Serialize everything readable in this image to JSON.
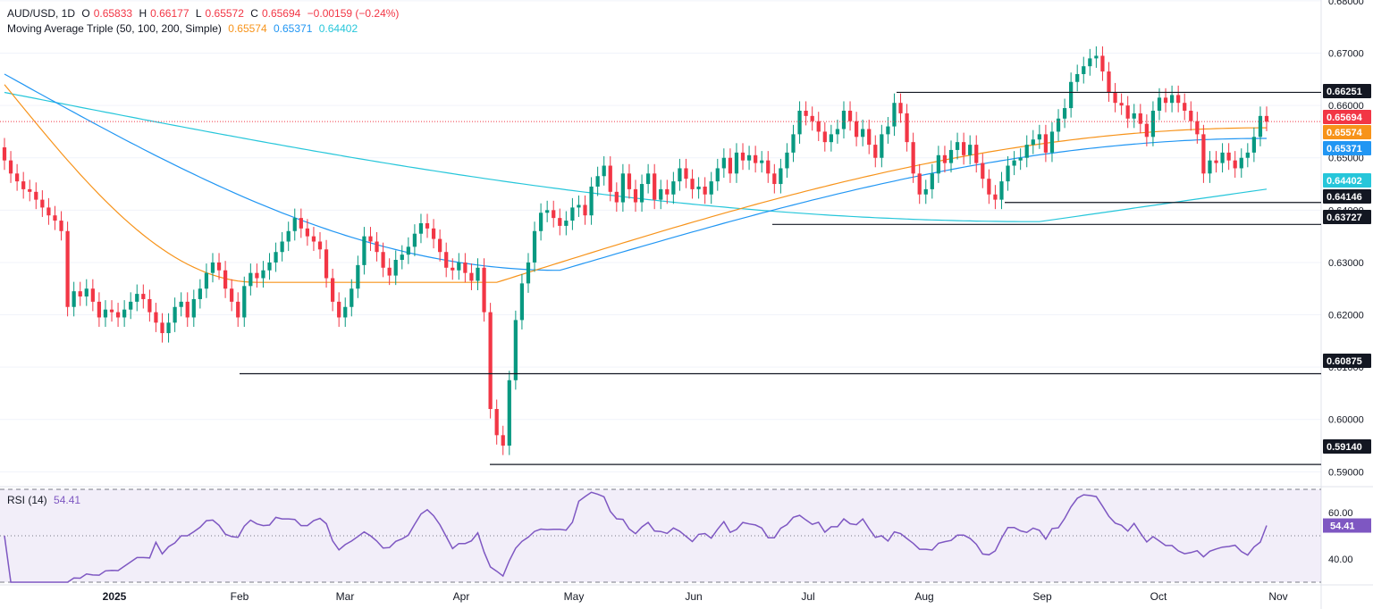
{
  "header": {
    "symbol": "AUD/USD, 1D",
    "o_label": "O",
    "o_value": "0.65833",
    "h_label": "H",
    "h_value": "0.66177",
    "l_label": "L",
    "l_value": "0.65572",
    "c_label": "C",
    "c_value": "0.65694",
    "change": "−0.00159 (−0.24%)"
  },
  "indicator": {
    "name": "Moving Average Triple (50, 100, 200, Simple)",
    "ma50": "0.65574",
    "ma100": "0.65371",
    "ma200": "0.64402"
  },
  "rsi_legend": {
    "name": "RSI (14)",
    "value": "54.41"
  },
  "colors": {
    "up": "#089981",
    "down": "#f23645",
    "ma50": "#f7931a",
    "ma100": "#2196f3",
    "ma200": "#26c6da",
    "rsi": "#7e57c2",
    "level": "#131722",
    "grid": "#f0f3fa"
  },
  "chart_data": {
    "type": "candlestick",
    "yaxis": {
      "range": [
        0.5875,
        0.6805
      ],
      "ticks": [
        "0.68000",
        "0.67000",
        "0.66000",
        "0.65000",
        "0.64000",
        "0.63000",
        "0.62000",
        "0.61000",
        "0.60000",
        "0.59000"
      ]
    },
    "xaxis": {
      "labels": [
        "2025",
        "Feb",
        "Mar",
        "Apr",
        "May",
        "Jun",
        "Jul",
        "Aug",
        "Sep",
        "Oct",
        "Nov"
      ]
    },
    "closes": [
      0.6495,
      0.647,
      0.6455,
      0.644,
      0.6435,
      0.642,
      0.6405,
      0.639,
      0.638,
      0.636,
      0.6215,
      0.6245,
      0.6235,
      0.625,
      0.6225,
      0.6195,
      0.621,
      0.6205,
      0.6195,
      0.621,
      0.6225,
      0.624,
      0.623,
      0.6205,
      0.6185,
      0.6165,
      0.6185,
      0.6215,
      0.6225,
      0.6195,
      0.623,
      0.625,
      0.628,
      0.63,
      0.6285,
      0.625,
      0.6225,
      0.6195,
      0.6255,
      0.628,
      0.627,
      0.6285,
      0.63,
      0.632,
      0.634,
      0.636,
      0.6385,
      0.6365,
      0.635,
      0.634,
      0.6325,
      0.627,
      0.6225,
      0.6195,
      0.6215,
      0.625,
      0.6295,
      0.635,
      0.634,
      0.632,
      0.629,
      0.6275,
      0.6305,
      0.6315,
      0.633,
      0.6355,
      0.6375,
      0.6365,
      0.6345,
      0.632,
      0.629,
      0.6285,
      0.63,
      0.628,
      0.6265,
      0.629,
      0.6205,
      0.602,
      0.597,
      0.595,
      0.6075,
      0.619,
      0.626,
      0.63,
      0.636,
      0.6395,
      0.64,
      0.6385,
      0.637,
      0.638,
      0.6405,
      0.641,
      0.639,
      0.6445,
      0.6465,
      0.6485,
      0.6435,
      0.6415,
      0.647,
      0.644,
      0.6415,
      0.645,
      0.647,
      0.642,
      0.644,
      0.643,
      0.6455,
      0.648,
      0.646,
      0.644,
      0.6445,
      0.643,
      0.6455,
      0.648,
      0.65,
      0.647,
      0.651,
      0.6495,
      0.6505,
      0.649,
      0.6495,
      0.647,
      0.645,
      0.648,
      0.651,
      0.6545,
      0.659,
      0.658,
      0.657,
      0.655,
      0.653,
      0.6545,
      0.6555,
      0.659,
      0.657,
      0.654,
      0.6555,
      0.6525,
      0.65,
      0.6545,
      0.656,
      0.6605,
      0.6585,
      0.653,
      0.647,
      0.643,
      0.644,
      0.647,
      0.6505,
      0.649,
      0.6515,
      0.653,
      0.6505,
      0.6525,
      0.649,
      0.646,
      0.643,
      0.642,
      0.6455,
      0.6485,
      0.6495,
      0.65,
      0.6525,
      0.6535,
      0.6545,
      0.651,
      0.655,
      0.6575,
      0.6595,
      0.6645,
      0.666,
      0.6675,
      0.669,
      0.6695,
      0.6665,
      0.6625,
      0.6605,
      0.66,
      0.6575,
      0.6585,
      0.6565,
      0.654,
      0.659,
      0.6615,
      0.6605,
      0.662,
      0.6605,
      0.659,
      0.657,
      0.6545,
      0.647,
      0.6495,
      0.649,
      0.651,
      0.6495,
      0.648,
      0.65,
      0.651,
      0.654,
      0.658,
      0.6569
    ],
    "ma50": {
      "from": 0.664,
      "to": 0.65574
    },
    "ma100": {
      "from": 0.666,
      "to": 0.65371
    },
    "ma200": {
      "from": 0.6625,
      "to": 0.64402
    },
    "price_tags": [
      {
        "label": "0.66251",
        "kind": "level"
      },
      {
        "label": "0.65694",
        "kind": "last"
      },
      {
        "label": "0.65574",
        "kind": "ma50"
      },
      {
        "label": "0.65371",
        "kind": "ma100"
      },
      {
        "label": "0.64402",
        "kind": "ma200"
      },
      {
        "label": "0.64146",
        "kind": "level"
      },
      {
        "label": "0.63727",
        "kind": "level"
      },
      {
        "label": "0.60875",
        "kind": "level"
      },
      {
        "label": "0.59140",
        "kind": "level"
      }
    ],
    "levels": [
      0.66251,
      0.64146,
      0.63727,
      0.60875,
      0.5914
    ],
    "rsi": {
      "ticks": [
        "60.00",
        "40.00"
      ],
      "range": [
        30,
        70
      ],
      "bands": [
        70,
        30
      ],
      "mid": 50,
      "last": "54.41"
    }
  }
}
